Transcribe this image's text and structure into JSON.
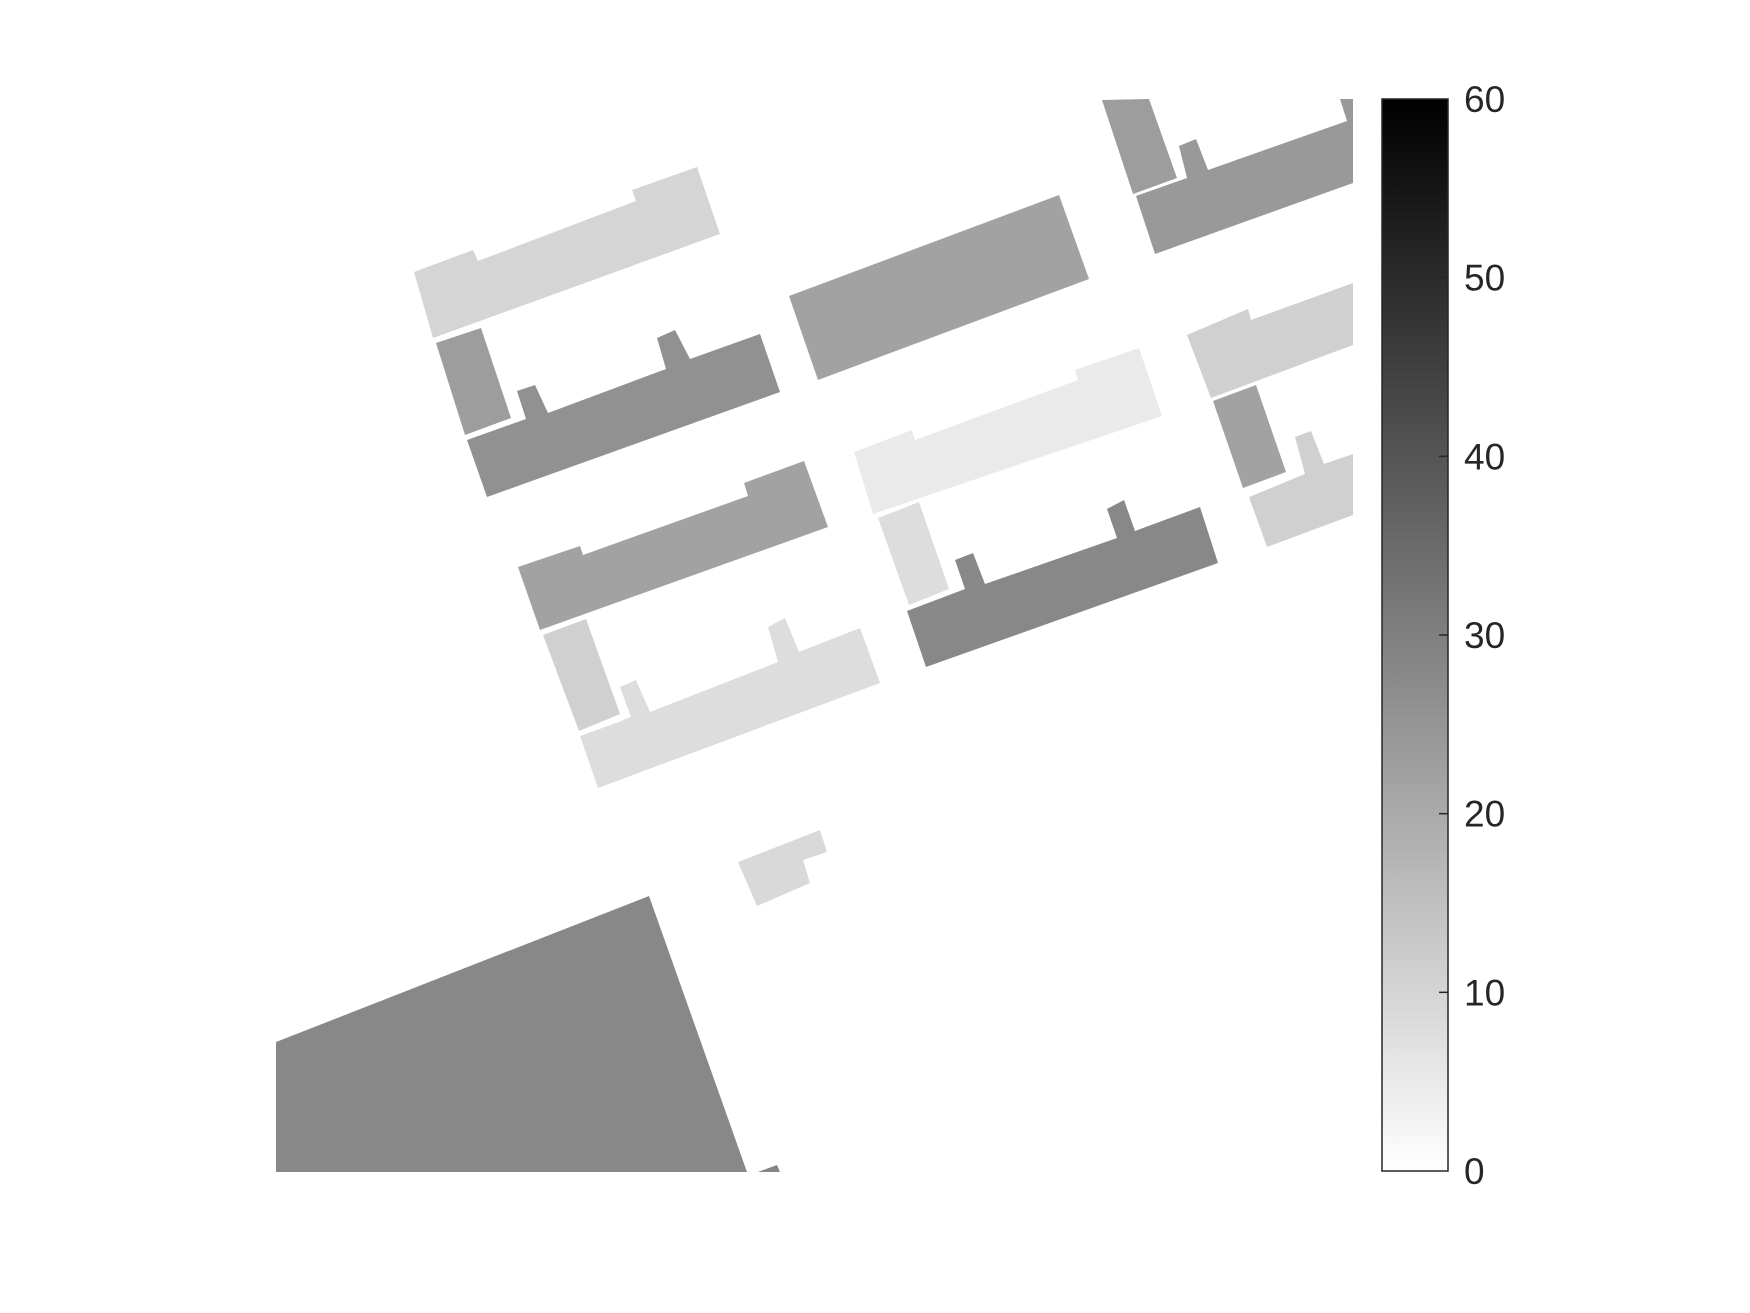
{
  "colorbar": {
    "min": 0,
    "max": 60,
    "ticks": [
      0,
      10,
      20,
      30,
      40,
      50,
      60
    ],
    "tick_labels": [
      "0",
      "10",
      "20",
      "30",
      "40",
      "50",
      "60"
    ],
    "colormap": "gray-reversed",
    "color_min": "#ffffff",
    "color_max": "#000000"
  },
  "buildings": [
    {
      "id": "b01",
      "value": 10
    },
    {
      "id": "b02",
      "value": 22
    },
    {
      "id": "b03",
      "value": 26
    },
    {
      "id": "b04",
      "value": 23
    },
    {
      "id": "b05",
      "value": 23
    },
    {
      "id": "b06",
      "value": 24
    },
    {
      "id": "b07",
      "value": 11
    },
    {
      "id": "b08",
      "value": 5
    },
    {
      "id": "b09",
      "value": 22
    },
    {
      "id": "b10",
      "value": 11
    },
    {
      "id": "b11",
      "value": 22
    },
    {
      "id": "b12",
      "value": 8
    },
    {
      "id": "b13",
      "value": 28
    },
    {
      "id": "b14",
      "value": 11
    },
    {
      "id": "b15",
      "value": 8
    },
    {
      "id": "b16",
      "value": 9
    },
    {
      "id": "b17",
      "value": 28
    },
    {
      "id": "b18",
      "value": 29
    }
  ]
}
